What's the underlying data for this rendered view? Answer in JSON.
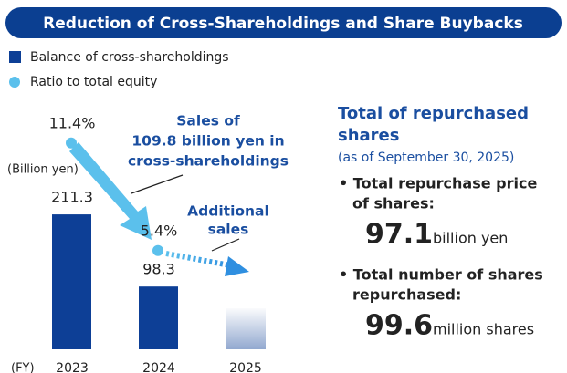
{
  "header": {
    "title": "Reduction of Cross-Shareholdings and Share Buybacks"
  },
  "chart_data": {
    "type": "bar",
    "categories": [
      "2023",
      "2024",
      "2025"
    ],
    "x_label": "(FY)",
    "y_label": "(Billion yen)",
    "series": [
      {
        "name": "Balance of cross-shareholdings",
        "color": "#0d3f96",
        "values": [
          211.3,
          98.3,
          null
        ]
      },
      {
        "name": "Ratio to total equity",
        "color": "#5bc0ec",
        "axis": "y2",
        "values": [
          11.4,
          5.4,
          null
        ],
        "value_labels": [
          "11.4%",
          "5.4%",
          null
        ]
      }
    ],
    "annotations": [
      [
        "Sales of",
        "109.8 billion yen in",
        "cross-shareholdings"
      ],
      [
        "Additional",
        "sales"
      ]
    ]
  },
  "summary": {
    "title": [
      "Total of repurchased",
      "shares"
    ],
    "subtitle": "(as of September 30, 2025)",
    "items": [
      {
        "label": [
          "• Total repurchase price",
          "of shares:"
        ],
        "value": "97.1",
        "unit": "billion yen"
      },
      {
        "label": [
          "• Total number of shares",
          "repurchased:"
        ],
        "value": "99.6",
        "unit": "million shares"
      }
    ]
  }
}
